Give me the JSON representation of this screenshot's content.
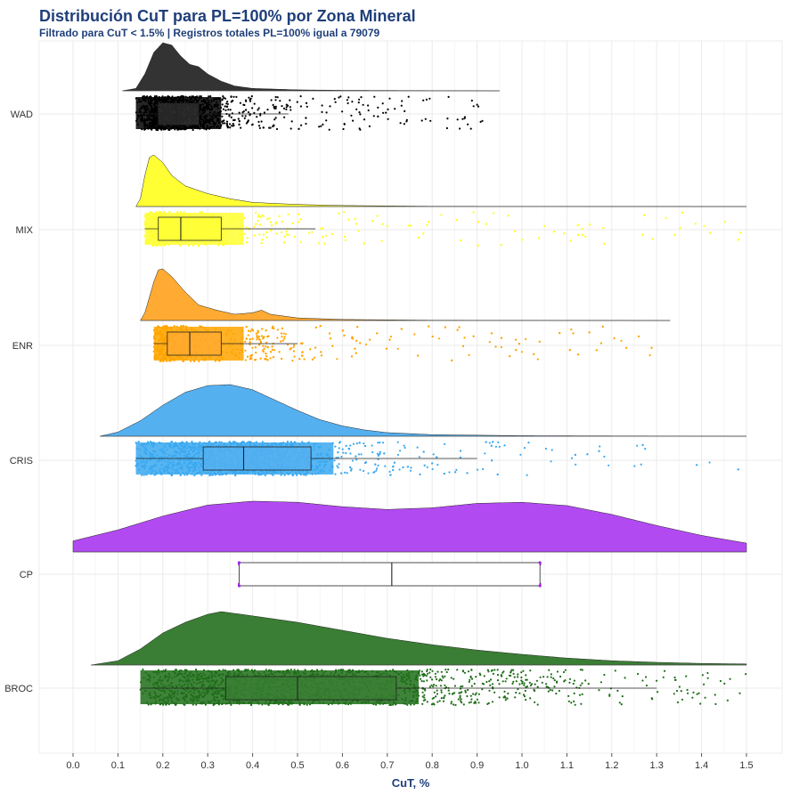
{
  "chart_data": {
    "type": "raincloud",
    "title": "Distribución CuT para PL=100% por Zona Mineral",
    "subtitle": "Filtrado para CuT < 1.5% | Registros totales PL=100% igual a 79079",
    "xlabel": "CuT, %",
    "ylabel": "",
    "xlim": [
      -0.08,
      1.58
    ],
    "xticks": [
      "0.0",
      "0.1",
      "0.2",
      "0.3",
      "0.4",
      "0.5",
      "0.6",
      "0.7",
      "0.8",
      "0.9",
      "1.0",
      "1.1",
      "1.2",
      "1.3",
      "1.4",
      "1.5"
    ],
    "grid": true,
    "legend": "none",
    "categories": [
      "WAD",
      "MIX",
      "ENR",
      "CRIS",
      "CP",
      "BROC"
    ],
    "series": [
      {
        "category": "WAD",
        "color": "#333333",
        "point_color": "#000000",
        "box": {
          "whisker_low": 0.14,
          "q1": 0.19,
          "median": 0.23,
          "q3": 0.28,
          "whisker_high": 0.48
        },
        "density": [
          [
            0.11,
            0
          ],
          [
            0.14,
            0.05
          ],
          [
            0.16,
            0.35
          ],
          [
            0.18,
            0.8
          ],
          [
            0.2,
            1.0
          ],
          [
            0.22,
            0.95
          ],
          [
            0.24,
            0.72
          ],
          [
            0.26,
            0.55
          ],
          [
            0.28,
            0.5
          ],
          [
            0.3,
            0.35
          ],
          [
            0.33,
            0.2
          ],
          [
            0.36,
            0.1
          ],
          [
            0.4,
            0.05
          ],
          [
            0.5,
            0.02
          ],
          [
            0.6,
            0.01
          ],
          [
            0.95,
            0.0
          ]
        ],
        "points_max": 0.92
      },
      {
        "category": "MIX",
        "color": "#ffff33",
        "point_color": "#ffff33",
        "box": {
          "whisker_low": 0.16,
          "q1": 0.19,
          "median": 0.24,
          "q3": 0.33,
          "whisker_high": 0.54
        },
        "density": [
          [
            0.14,
            0
          ],
          [
            0.15,
            0.15
          ],
          [
            0.16,
            0.6
          ],
          [
            0.17,
            0.95
          ],
          [
            0.18,
            1.0
          ],
          [
            0.2,
            0.85
          ],
          [
            0.22,
            0.6
          ],
          [
            0.25,
            0.4
          ],
          [
            0.3,
            0.25
          ],
          [
            0.35,
            0.15
          ],
          [
            0.4,
            0.08
          ],
          [
            0.5,
            0.04
          ],
          [
            0.6,
            0.02
          ],
          [
            0.8,
            0.005
          ],
          [
            1.5,
            0.0
          ]
        ],
        "points_max": 1.5
      },
      {
        "category": "ENR",
        "color": "#ffaa33",
        "point_color": "#ffa500",
        "box": {
          "whisker_low": 0.18,
          "q1": 0.21,
          "median": 0.26,
          "q3": 0.33,
          "whisker_high": 0.5
        },
        "density": [
          [
            0.15,
            0
          ],
          [
            0.16,
            0.15
          ],
          [
            0.18,
            0.75
          ],
          [
            0.19,
            0.98
          ],
          [
            0.2,
            1.0
          ],
          [
            0.22,
            0.85
          ],
          [
            0.25,
            0.55
          ],
          [
            0.28,
            0.3
          ],
          [
            0.32,
            0.2
          ],
          [
            0.36,
            0.12
          ],
          [
            0.4,
            0.15
          ],
          [
            0.42,
            0.2
          ],
          [
            0.44,
            0.12
          ],
          [
            0.5,
            0.05
          ],
          [
            0.6,
            0.02
          ],
          [
            0.8,
            0.005
          ],
          [
            1.33,
            0.0
          ]
        ],
        "points_max": 1.3
      },
      {
        "category": "CRIS",
        "color": "#55b0f0",
        "point_color": "#3aa8f0",
        "box": {
          "whisker_low": 0.14,
          "q1": 0.29,
          "median": 0.38,
          "q3": 0.53,
          "whisker_high": 0.9
        },
        "density": [
          [
            0.06,
            0
          ],
          [
            0.1,
            0.08
          ],
          [
            0.15,
            0.3
          ],
          [
            0.2,
            0.6
          ],
          [
            0.25,
            0.85
          ],
          [
            0.3,
            0.98
          ],
          [
            0.35,
            1.0
          ],
          [
            0.4,
            0.9
          ],
          [
            0.45,
            0.7
          ],
          [
            0.5,
            0.5
          ],
          [
            0.55,
            0.32
          ],
          [
            0.6,
            0.2
          ],
          [
            0.65,
            0.12
          ],
          [
            0.7,
            0.07
          ],
          [
            0.8,
            0.03
          ],
          [
            1.0,
            0.01
          ],
          [
            1.5,
            0.0
          ]
        ],
        "points_max": 1.5
      },
      {
        "category": "CP",
        "color": "#b24af2",
        "point_color": "#a020f0",
        "box": {
          "whisker_low": 0.37,
          "q1": 0.37,
          "median": 0.71,
          "q3": 1.04,
          "whisker_high": 1.04
        },
        "density": [
          [
            0.0,
            0.2
          ],
          [
            0.1,
            0.4
          ],
          [
            0.2,
            0.65
          ],
          [
            0.3,
            0.85
          ],
          [
            0.4,
            0.92
          ],
          [
            0.5,
            0.9
          ],
          [
            0.6,
            0.82
          ],
          [
            0.7,
            0.77
          ],
          [
            0.8,
            0.8
          ],
          [
            0.9,
            0.88
          ],
          [
            1.0,
            0.9
          ],
          [
            1.1,
            0.84
          ],
          [
            1.2,
            0.68
          ],
          [
            1.3,
            0.48
          ],
          [
            1.4,
            0.3
          ],
          [
            1.5,
            0.16
          ]
        ],
        "points": [
          0.37,
          1.04
        ]
      },
      {
        "category": "BROC",
        "color": "#3a7d34",
        "point_color": "#1f6d19",
        "box": {
          "whisker_low": 0.15,
          "q1": 0.34,
          "median": 0.5,
          "q3": 0.72,
          "whisker_high": 1.3
        },
        "density": [
          [
            0.04,
            0
          ],
          [
            0.1,
            0.08
          ],
          [
            0.15,
            0.3
          ],
          [
            0.2,
            0.6
          ],
          [
            0.25,
            0.8
          ],
          [
            0.3,
            0.95
          ],
          [
            0.33,
            1.0
          ],
          [
            0.4,
            0.92
          ],
          [
            0.5,
            0.8
          ],
          [
            0.6,
            0.65
          ],
          [
            0.7,
            0.5
          ],
          [
            0.8,
            0.38
          ],
          [
            0.9,
            0.28
          ],
          [
            1.0,
            0.2
          ],
          [
            1.1,
            0.13
          ],
          [
            1.2,
            0.08
          ],
          [
            1.3,
            0.05
          ],
          [
            1.4,
            0.03
          ],
          [
            1.5,
            0.02
          ]
        ],
        "points_max": 1.5
      }
    ]
  }
}
